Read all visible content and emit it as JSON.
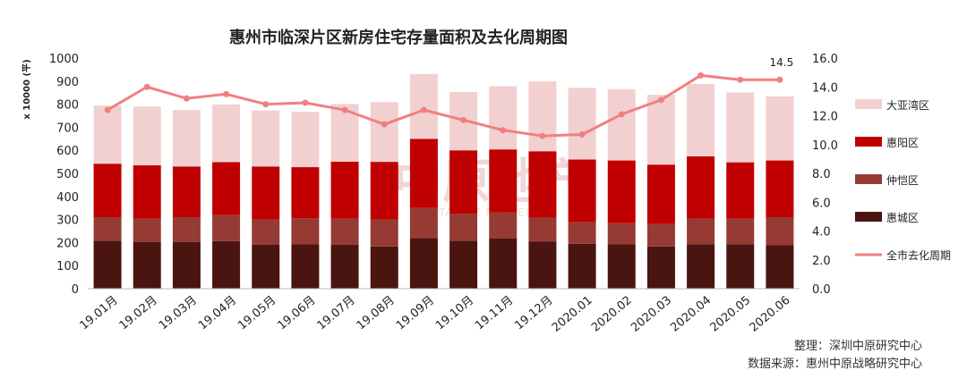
{
  "chart_data": {
    "type": "bar",
    "title": "惠州市临深片区新房住宅存量面积及去化周期图",
    "y_unit": "x 10000 (平)",
    "ylim": [
      0,
      1000
    ],
    "yticks": [
      0,
      100,
      200,
      300,
      400,
      500,
      600,
      700,
      800,
      900,
      1000
    ],
    "y2lim": [
      0,
      16
    ],
    "y2ticks": [
      "0.0",
      "2.0",
      "4.0",
      "6.0",
      "8.0",
      "10.0",
      "12.0",
      "14.0",
      "16.0"
    ],
    "categories": [
      "19.01月",
      "19.02月",
      "19.03月",
      "19.04月",
      "19.05月",
      "19.06月",
      "19.07月",
      "19.08月",
      "19.09月",
      "19.10月",
      "19.11月",
      "19.12月",
      "2020.01",
      "2020.02",
      "2020.03",
      "2020.04",
      "2020.05",
      "2020.06"
    ],
    "stacked": true,
    "series": [
      {
        "name": "惠城区",
        "color": "#4a1410",
        "values": [
          208,
          203,
          203,
          206,
          190,
          192,
          190,
          183,
          220,
          208,
          217,
          205,
          195,
          192,
          183,
          193,
          193,
          188
        ]
      },
      {
        "name": "仲恺区",
        "color": "#953b33",
        "values": [
          102,
          100,
          107,
          113,
          110,
          113,
          113,
          117,
          130,
          116,
          113,
          103,
          93,
          92,
          97,
          111,
          110,
          122
        ]
      },
      {
        "name": "惠阳区",
        "color": "#c00000",
        "values": [
          232,
          232,
          220,
          230,
          230,
          222,
          248,
          250,
          300,
          276,
          274,
          288,
          272,
          272,
          258,
          270,
          245,
          246
        ]
      },
      {
        "name": "大亚湾区",
        "color": "#f2d0d0",
        "values": [
          252,
          255,
          245,
          250,
          243,
          240,
          250,
          259,
          281,
          253,
          274,
          303,
          311,
          309,
          303,
          314,
          303,
          278
        ]
      }
    ],
    "line": {
      "name": "全市去化周期",
      "color": "#f08080",
      "axis": "right",
      "values": [
        12.4,
        14.0,
        13.2,
        13.5,
        12.8,
        12.9,
        12.4,
        11.4,
        12.4,
        11.7,
        11.0,
        10.6,
        10.7,
        12.1,
        13.1,
        14.8,
        14.5,
        14.5
      ],
      "end_label": "14.5"
    },
    "legend_position": "right",
    "grid": false
  },
  "footer": {
    "line1": "整理：深圳中原研究中心",
    "line2": "数据来源：惠州中原战略研究中心"
  },
  "watermark": {
    "main": "中原地产",
    "sub": "CENTALINE PROPERTY"
  }
}
